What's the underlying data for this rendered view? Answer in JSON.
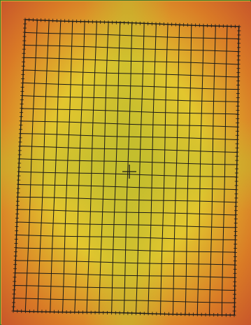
{
  "image": {
    "kind": "distortion-heatmap-with-grid",
    "border_color": "#3c7a2a",
    "colors": {
      "center": "#c3bd2d",
      "mid": "#e2c62e",
      "edge": "#d97a26",
      "corner": "#c9582a",
      "grid": "#1a1a1a"
    }
  },
  "grid": {
    "columns": 18,
    "rows": 23,
    "center_marker": "crosshair"
  }
}
